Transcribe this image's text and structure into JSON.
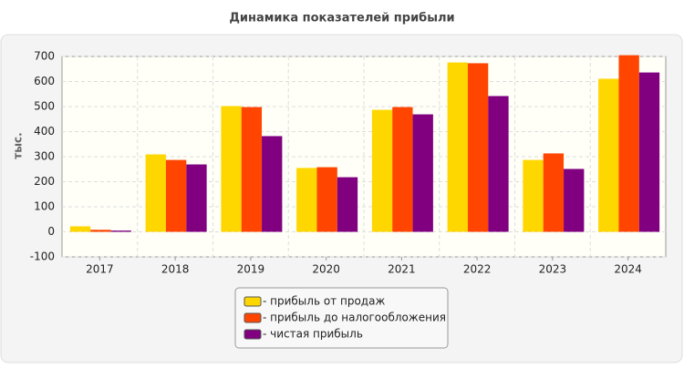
{
  "chart_data": {
    "type": "bar",
    "title": "Динамика показателей прибыли",
    "y_label": "тыс.",
    "categories": [
      "2017",
      "2018",
      "2019",
      "2020",
      "2021",
      "2022",
      "2023",
      "2024"
    ],
    "series": [
      {
        "name": "- прибыль от продаж",
        "color": "#ffd700",
        "values": [
          22,
          309,
          502,
          255,
          487,
          676,
          287,
          611
        ]
      },
      {
        "name": "- прибыль до налогообложения",
        "color": "#ff4500",
        "values": [
          8,
          287,
          498,
          258,
          498,
          673,
          313,
          705
        ]
      },
      {
        "name": "- чистая прибыль",
        "color": "#800080",
        "values": [
          5,
          269,
          382,
          218,
          469,
          542,
          251,
          636
        ]
      }
    ],
    "ylim": [
      -100,
      700
    ],
    "yticks": [
      -100,
      0,
      100,
      200,
      300,
      400,
      500,
      600,
      700
    ],
    "grid": true
  }
}
